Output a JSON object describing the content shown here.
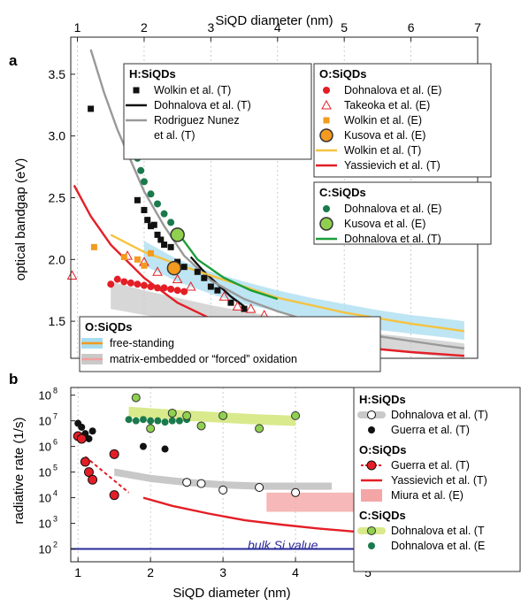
{
  "figure": {
    "top_xlabel": "SiQD diameter (nm)",
    "bottom_xlabel": "SiQD diameter (nm)"
  },
  "colors": {
    "axis": "#222222",
    "grid": "#bfbfbf",
    "h_black": "#111111",
    "h_gray": "#999999",
    "o_red": "#e41e26",
    "o_orange": "#f39a1f",
    "o_yellow": "#f5c342",
    "c_green": "#1a7a4c",
    "c_lightgreen": "#8fd14f",
    "c_green_line": "#1a9e3a",
    "free_band": "#a8dcef",
    "embed_band": "#c9c9c9",
    "bulk_line": "#2a2a9a",
    "miura_fill": "#f4a6a6",
    "band_lightgreen": "#d8ea8c"
  },
  "chart_data": [
    {
      "panel_label": "a",
      "type": "scatter",
      "title": "",
      "xlabel": "SiQD diameter (nm)",
      "ylabel": "optical bandgap (eV)",
      "xlim": [
        0.9,
        7.0
      ],
      "ylim": [
        1.2,
        3.8
      ],
      "xticks": [
        "1",
        "2",
        "3",
        "4",
        "5",
        "6",
        "7"
      ],
      "yticks": [
        "1.5",
        "2.0",
        "2.5",
        "3.0",
        "3.5"
      ],
      "grid_x": true,
      "legends": [
        {
          "title": "H:SiQDs",
          "entries": [
            {
              "label": "Wolkin et al. (T)",
              "marker": "black-square"
            },
            {
              "label": "Dohnalova et al. (T)",
              "marker": "black-line"
            },
            {
              "label": "Rodriguez Nunez",
              "marker": "gray-line"
            },
            {
              "label": "et al. (T)",
              "marker": "none"
            }
          ]
        },
        {
          "title": "O:SiQDs",
          "entries": [
            {
              "label": "Dohnalova et al. (E)",
              "marker": "red-circle"
            },
            {
              "label": "Takeoka et al. (E)",
              "marker": "red-open-triangle"
            },
            {
              "label": "Wolkin et al. (E)",
              "marker": "orange-square"
            },
            {
              "label": "Kusova et al. (E)",
              "marker": "orange-big-circle"
            },
            {
              "label": "Wolkin et al. (T)",
              "marker": "yellow-line"
            },
            {
              "label": "Yassievich et al. (T)",
              "marker": "red-line"
            }
          ]
        },
        {
          "title": "C:SiQDs",
          "entries": [
            {
              "label": "Dohnalova et al. (E)",
              "marker": "green-circle"
            },
            {
              "label": "Kusova et al. (E)",
              "marker": "lightgreen-big-circle"
            },
            {
              "label": "Dohnalova et al. (T)",
              "marker": "green-line"
            }
          ]
        },
        {
          "title": "O:SiQDs",
          "entries": [
            {
              "label": "free-standing",
              "marker": "blue-band"
            },
            {
              "label": "matrix-embedded or “forced” oxidation",
              "marker": "gray-band"
            }
          ]
        }
      ],
      "series": [
        {
          "name": "Wolkin et al. (T)",
          "kind": "scatter",
          "marker": "square",
          "color": "#111111",
          "x": [
            1.2,
            1.9,
            2.0,
            2.05,
            2.1,
            2.15,
            2.2,
            2.25,
            2.3,
            2.4,
            2.5,
            2.6,
            2.8,
            2.9,
            3.0,
            3.1,
            3.3,
            3.5
          ],
          "y": [
            3.22,
            2.48,
            2.4,
            2.32,
            2.27,
            2.28,
            2.2,
            2.16,
            2.12,
            2.1,
            1.98,
            1.94,
            1.9,
            1.85,
            1.78,
            1.75,
            1.65,
            1.6
          ]
        },
        {
          "name": "Dohnalova et al. (T)",
          "kind": "line",
          "color": "#111111",
          "x": [
            2.7,
            2.9,
            3.1,
            3.3,
            3.5
          ],
          "y": [
            2.02,
            1.9,
            1.8,
            1.7,
            1.62
          ]
        },
        {
          "name": "Rodriguez Nunez et al. (T)",
          "kind": "line",
          "color": "#999999",
          "x": [
            1.2,
            1.4,
            1.6,
            1.8,
            2.0,
            2.3,
            2.6,
            3.0,
            3.5,
            4.0,
            4.5,
            5.0,
            5.5,
            6.0,
            6.5,
            6.8
          ],
          "y": [
            3.7,
            3.35,
            3.05,
            2.8,
            2.55,
            2.27,
            2.03,
            1.83,
            1.68,
            1.58,
            1.5,
            1.44,
            1.38,
            1.34,
            1.3,
            1.28
          ]
        },
        {
          "name": "Dohnalova et al. (E)",
          "kind": "scatter",
          "marker": "circle",
          "color": "#e41e26",
          "x": [
            1.5,
            1.6,
            1.7,
            1.8,
            1.9,
            2.0,
            2.1,
            2.2,
            2.3,
            2.4,
            2.5,
            2.6
          ],
          "y": [
            1.8,
            1.84,
            1.82,
            1.81,
            1.8,
            1.79,
            1.78,
            1.77,
            1.77,
            1.76,
            1.75,
            1.74
          ]
        },
        {
          "name": "Takeoka et al. (E)",
          "kind": "scatter",
          "marker": "open-triangle",
          "color": "#e41e26",
          "x": [
            0.92,
            1.75,
            2.0,
            2.2,
            2.5,
            2.7,
            3.2,
            3.4,
            3.6,
            3.8,
            4.0,
            4.2,
            4.5,
            4.8,
            5.0,
            5.2
          ],
          "y": [
            1.87,
            2.03,
            1.98,
            1.9,
            1.84,
            1.78,
            1.7,
            1.62,
            1.6,
            1.55,
            1.5,
            1.5,
            1.47,
            1.45,
            1.43,
            1.42
          ]
        },
        {
          "name": "Wolkin et al. (E)",
          "kind": "scatter",
          "marker": "square",
          "color": "#f39a1f",
          "x": [
            1.25,
            1.7,
            1.9,
            2.0,
            2.1
          ],
          "y": [
            2.1,
            2.02,
            2.0,
            1.95,
            2.05
          ]
        },
        {
          "name": "Kusova et al. (E)",
          "kind": "scatter",
          "marker": "big-circle",
          "color": "#f39a1f",
          "x": [
            2.45
          ],
          "y": [
            1.93
          ]
        },
        {
          "name": "Wolkin et al. (T)",
          "kind": "line",
          "color": "#f5c342",
          "x": [
            1.5,
            2.0,
            2.5,
            3.0,
            3.5,
            4.0,
            5.0,
            6.0,
            6.8
          ],
          "y": [
            2.2,
            2.06,
            1.96,
            1.87,
            1.78,
            1.69,
            1.57,
            1.48,
            1.42
          ]
        },
        {
          "name": "Yassievich et al. (T)",
          "kind": "line",
          "color": "#e41e26",
          "x": [
            0.95,
            1.2,
            1.5,
            2.0,
            2.5,
            3.0,
            3.5,
            4.0,
            5.0,
            6.0,
            6.8
          ],
          "y": [
            2.6,
            2.35,
            2.12,
            1.85,
            1.65,
            1.52,
            1.44,
            1.38,
            1.3,
            1.25,
            1.22
          ]
        },
        {
          "name": "Dohnalova et al. (E)",
          "kind": "scatter",
          "marker": "circle",
          "color": "#1a7a4c",
          "x": [
            1.8,
            1.85,
            1.9,
            1.95,
            2.0,
            2.1,
            2.2,
            2.3,
            2.4,
            2.5
          ],
          "y": [
            3.03,
            2.93,
            2.82,
            2.72,
            2.63,
            2.53,
            2.45,
            2.37,
            2.3,
            2.22
          ]
        },
        {
          "name": "Kusova et al. (E)",
          "kind": "scatter",
          "marker": "big-circle",
          "color": "#8fd14f",
          "x": [
            2.5
          ],
          "y": [
            2.2
          ]
        },
        {
          "name": "Dohnalova et al. (T)",
          "kind": "line",
          "color": "#1a9e3a",
          "x": [
            2.5,
            2.8,
            3.2,
            3.6,
            4.0
          ],
          "y": [
            2.22,
            2.0,
            1.85,
            1.75,
            1.68
          ]
        }
      ],
      "bands": [
        {
          "name": "free-standing",
          "color": "#a8dcef",
          "x": [
            2.0,
            2.5,
            3.0,
            3.5,
            4.0,
            4.5,
            5.0,
            5.5,
            6.0,
            6.5,
            6.8
          ],
          "lower": [
            1.95,
            1.82,
            1.72,
            1.64,
            1.58,
            1.52,
            1.47,
            1.43,
            1.4,
            1.37,
            1.35
          ],
          "upper": [
            2.15,
            2.0,
            1.9,
            1.82,
            1.75,
            1.69,
            1.64,
            1.59,
            1.55,
            1.52,
            1.5
          ]
        },
        {
          "name": "matrix-embedded or “forced” oxidation",
          "color": "#c9c9c9",
          "x": [
            1.5,
            2.0,
            2.5,
            3.0,
            3.5,
            4.0,
            4.5,
            5.0,
            5.5,
            6.0,
            6.5,
            6.8
          ],
          "lower": [
            1.6,
            1.55,
            1.5,
            1.45,
            1.41,
            1.37,
            1.33,
            1.3,
            1.27,
            1.24,
            1.21,
            1.19
          ],
          "upper": [
            1.82,
            1.75,
            1.69,
            1.63,
            1.58,
            1.53,
            1.48,
            1.44,
            1.4,
            1.37,
            1.34,
            1.32
          ]
        }
      ]
    },
    {
      "panel_label": "b",
      "type": "scatter",
      "title": "",
      "xlabel": "SiQD diameter (nm)",
      "ylabel": "radiative rate (1/s)",
      "xlim": [
        0.9,
        6.0
      ],
      "ylim_log10": [
        1.5,
        8.3
      ],
      "xticks": [
        "1",
        "2",
        "3",
        "4",
        "5"
      ],
      "yticks": [
        "10",
        "10",
        "10",
        "10",
        "10",
        "10",
        "10"
      ],
      "ytick_exponents": [
        "2",
        "3",
        "4",
        "5",
        "6",
        "7",
        "8"
      ],
      "grid_x": true,
      "annotation": "bulk Si value",
      "bulk_value_log10": 2.0,
      "legends": [
        {
          "title": "H:SiQDs",
          "entries": [
            {
              "label": "Dohnalova et al. (T)",
              "marker": "gray-band-open-circle"
            },
            {
              "label": "Guerra et al. (T)",
              "marker": "black-dot"
            }
          ]
        },
        {
          "title": "O:SiQDs",
          "entries": [
            {
              "label": "Guerra et al. (T)",
              "marker": "red-dashed-circle"
            },
            {
              "label": "Yassievich et al. (T)",
              "marker": "red-line"
            },
            {
              "label": "Miura et al. (E)",
              "marker": "pink-rect"
            }
          ]
        },
        {
          "title": "C:SiQDs",
          "entries": [
            {
              "label": "Dohnalova et al. (T",
              "marker": "lightgreen-band-circle"
            },
            {
              "label": "Dohnalova et al. (E",
              "marker": "green-circle"
            }
          ]
        }
      ],
      "series": [
        {
          "name": "Dohnalova et al. (T)",
          "kind": "scatter",
          "marker": "open-circle",
          "color": "#111111",
          "x": [
            2.5,
            2.7,
            3.0,
            3.5,
            4.0
          ],
          "y_log10": [
            4.6,
            4.55,
            4.3,
            4.4,
            4.2
          ]
        },
        {
          "name": "Guerra et al. (T)",
          "kind": "scatter",
          "marker": "dot",
          "color": "#111111",
          "x": [
            1.0,
            1.05,
            1.1,
            1.15,
            1.2,
            1.9,
            2.2
          ],
          "y_log10": [
            6.9,
            6.75,
            6.5,
            6.3,
            6.6,
            6.0,
            5.9
          ]
        },
        {
          "name": "Guerra et al. (T)",
          "kind": "scatter",
          "marker": "red-circle",
          "color": "#e41e26",
          "x": [
            1.0,
            1.05,
            1.1,
            1.15,
            1.2,
            1.5,
            1.5
          ],
          "y_log10": [
            6.4,
            6.3,
            5.4,
            5.0,
            4.7,
            5.7,
            4.1
          ]
        },
        {
          "name": "Yassievich et al. (T)",
          "kind": "line",
          "color": "#e41e26",
          "x": [
            1.9,
            2.3,
            2.8,
            3.3,
            3.8,
            4.3,
            4.8,
            5.3,
            5.8
          ],
          "y_log10": [
            4.0,
            3.68,
            3.38,
            3.12,
            2.95,
            2.8,
            2.68,
            2.58,
            2.5
          ]
        },
        {
          "name": "Dohnalova et al. (T)",
          "kind": "scatter",
          "marker": "green-circle",
          "color": "#1a7a4c",
          "x": [
            1.7,
            1.8,
            1.9,
            2.0,
            2.1,
            2.2,
            2.3,
            2.4,
            2.5
          ],
          "y_log10": [
            7.05,
            7.0,
            7.05,
            7.0,
            7.0,
            6.95,
            7.0,
            7.0,
            7.05
          ]
        },
        {
          "name": "Dohnalova et al. (E)",
          "kind": "scatter",
          "marker": "lightgreen-circle",
          "color": "#8fd14f",
          "x": [
            1.8,
            2.3,
            2.5,
            2.7,
            3.0,
            3.5,
            4.0,
            2.0
          ],
          "y_log10": [
            7.9,
            7.3,
            7.2,
            6.8,
            7.2,
            6.7,
            7.2,
            6.7
          ]
        }
      ],
      "bands": [
        {
          "name": "Dohnalova et al. (T)",
          "color": "#c8c8c8",
          "x": [
            1.5,
            2.0,
            2.5,
            3.0,
            3.5,
            4.0,
            4.5
          ],
          "center_log10": [
            5.0,
            4.75,
            4.6,
            4.5,
            4.45,
            4.45,
            4.45
          ],
          "halfwidth": 0.14
        },
        {
          "name": "Dohnalova et al. (T",
          "color": "#d8ea8c",
          "x": [
            1.7,
            2.5,
            3.5,
            4.0
          ],
          "center_log10": [
            7.35,
            7.2,
            7.05,
            7.0
          ],
          "halfwidth": 0.2
        }
      ],
      "miura_region": {
        "x": [
          3.6,
          6.0
        ],
        "y_log10": [
          3.45,
          4.2
        ]
      }
    }
  ]
}
